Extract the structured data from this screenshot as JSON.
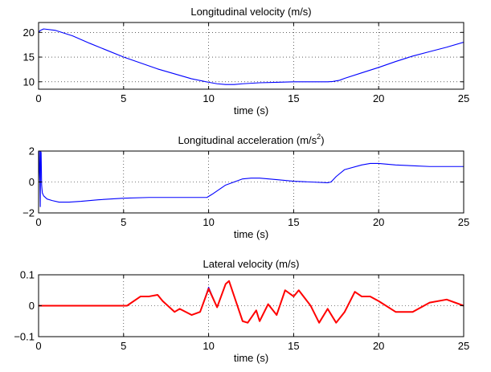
{
  "chart_data": [
    {
      "type": "line",
      "title": "Longitudinal velocity (m/s)",
      "xlabel": "time (s)",
      "ylabel": "",
      "xlim": [
        0,
        25
      ],
      "ylim": [
        8.5,
        22
      ],
      "xticks": [
        0,
        5,
        10,
        15,
        20,
        25
      ],
      "yticks": [
        10,
        15,
        20
      ],
      "grid": true,
      "series": [
        {
          "color": "#0000ff",
          "x": [
            0,
            0.1,
            0.3,
            1,
            2,
            3,
            4,
            5,
            6,
            7,
            8,
            9,
            10,
            10.5,
            11,
            11.5,
            12,
            13,
            14,
            15,
            16,
            17,
            17.3,
            17.7,
            18,
            19,
            20,
            21,
            22,
            23,
            24,
            25
          ],
          "y": [
            20.0,
            20.4,
            20.7,
            20.4,
            19.3,
            17.8,
            16.4,
            15.0,
            13.8,
            12.6,
            11.6,
            10.6,
            9.9,
            9.6,
            9.45,
            9.45,
            9.6,
            9.8,
            9.9,
            10.0,
            10.0,
            10.0,
            10.05,
            10.3,
            10.7,
            11.8,
            12.9,
            14.1,
            15.2,
            16.1,
            17.0,
            18.0
          ]
        }
      ]
    },
    {
      "type": "line",
      "title": "Longitudinal acceleration (m/s",
      "title_sup": "2",
      "title_suffix": ")",
      "xlabel": "time (s)",
      "ylabel": "",
      "xlim": [
        0,
        25
      ],
      "ylim": [
        -2,
        2
      ],
      "xticks": [
        0,
        5,
        10,
        15,
        20,
        25
      ],
      "yticks": [
        -2,
        0,
        2
      ],
      "grid": true,
      "series": [
        {
          "color": "#0000ff",
          "x": [
            0,
            0.05,
            0.1,
            0.12,
            0.15,
            0.18,
            0.22,
            0.3,
            0.5,
            0.8,
            1.2,
            1.8,
            2.5,
            3.5,
            5,
            6.5,
            8,
            9,
            9.9,
            10.2,
            11,
            12,
            12.5,
            13,
            14,
            15,
            16,
            17,
            17.2,
            17.5,
            18,
            19,
            19.5,
            20,
            21,
            22,
            23,
            24,
            25
          ],
          "y": [
            0,
            2,
            -1.6,
            2,
            1.9,
            -0.2,
            -0.7,
            -0.9,
            -1.1,
            -1.2,
            -1.3,
            -1.3,
            -1.25,
            -1.15,
            -1.05,
            -1.0,
            -1.0,
            -1.0,
            -1.0,
            -0.8,
            -0.2,
            0.2,
            0.25,
            0.25,
            0.15,
            0.05,
            0.0,
            -0.05,
            0.0,
            0.35,
            0.8,
            1.1,
            1.2,
            1.2,
            1.1,
            1.05,
            1.0,
            1.0,
            1.0
          ]
        }
      ]
    },
    {
      "type": "line",
      "title": "Lateral velocity (m/s)",
      "xlabel": "time (s)",
      "ylabel": "",
      "xlim": [
        0,
        25
      ],
      "ylim": [
        -0.1,
        0.1
      ],
      "xticks": [
        0,
        5,
        10,
        15,
        20,
        25
      ],
      "yticks": [
        -0.1,
        0,
        0.1
      ],
      "grid": true,
      "series": [
        {
          "color": "#0000ff",
          "x": [
            0,
            5.2,
            6,
            6.5,
            7,
            7.3,
            8,
            8.3,
            9,
            9.5,
            10,
            10.5,
            11,
            11.2,
            12,
            12.3,
            12.8,
            13,
            13.5,
            14,
            14.5,
            15,
            15.3,
            16,
            16.5,
            17,
            17.5,
            18,
            18.6,
            19,
            19.5,
            20,
            21,
            22,
            23,
            24,
            25
          ],
          "y": [
            0,
            0,
            0.03,
            0.03,
            0.035,
            0.015,
            -0.02,
            -0.01,
            -0.03,
            -0.02,
            0.06,
            -0.005,
            0.07,
            0.08,
            -0.05,
            -0.055,
            -0.015,
            -0.05,
            0.005,
            -0.03,
            0.05,
            0.03,
            0.05,
            0.0,
            -0.055,
            -0.01,
            -0.055,
            -0.02,
            0.045,
            0.03,
            0.03,
            0.015,
            -0.02,
            -0.02,
            0.01,
            0.02,
            0.0
          ]
        },
        {
          "color": "#ff0000",
          "x": [
            0,
            5.2,
            6,
            6.5,
            7,
            7.3,
            8,
            8.3,
            9,
            9.5,
            10,
            10.5,
            11,
            11.2,
            12,
            12.3,
            12.8,
            13,
            13.5,
            14,
            14.5,
            15,
            15.3,
            16,
            16.5,
            17,
            17.5,
            18,
            18.6,
            19,
            19.5,
            20,
            21,
            22,
            23,
            24,
            25
          ],
          "y": [
            0,
            0,
            0.03,
            0.03,
            0.035,
            0.015,
            -0.02,
            -0.01,
            -0.03,
            -0.02,
            0.055,
            -0.005,
            0.07,
            0.08,
            -0.05,
            -0.055,
            -0.015,
            -0.05,
            0.005,
            -0.03,
            0.05,
            0.03,
            0.05,
            0.0,
            -0.055,
            -0.01,
            -0.055,
            -0.02,
            0.045,
            0.03,
            0.03,
            0.015,
            -0.02,
            -0.02,
            0.01,
            0.02,
            0.0
          ]
        }
      ]
    }
  ]
}
